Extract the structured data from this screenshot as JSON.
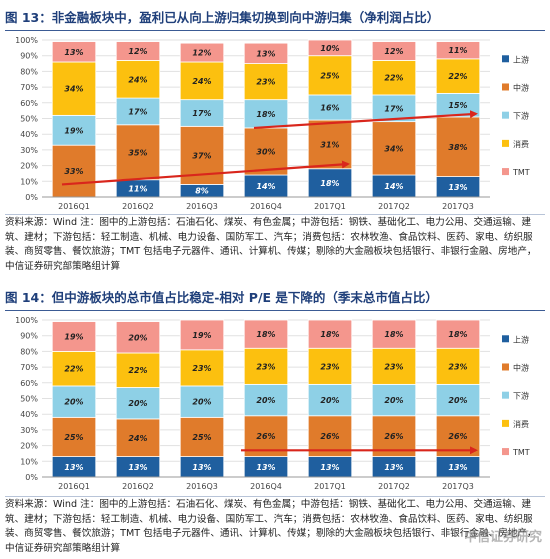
{
  "figures": [
    {
      "title": "图 13：非金融板块中，盈利已从向上游归集切换到向中游归集（净利润占比）",
      "source": "资料来源：Wind    注：图中的上游包括：石油石化、煤炭、有色金属；中游包括：钢铁、基础化工、电力公用、交通运输、建筑、建材；下游包括：轻工制造、机械、电力设备、国防军工、汽车；消费包括：农林牧渔、食品饮料、医药、家电、纺织服装、商贸零售、餐饮旅游；TMT 包括电子元器件、通讯、计算机、传媒；剔除的大金融板块包括银行、非银行金融、房地产，中信证券研究部策略组计算",
      "chart_data": {
        "type": "bar",
        "stacked": true,
        "percent": true,
        "categories": [
          "2016Q1",
          "2016Q2",
          "2016Q3",
          "2016Q4",
          "2017Q1",
          "2017Q2",
          "2017Q3"
        ],
        "series": [
          {
            "name": "上游",
            "color": "#1f5f9f",
            "values": [
              0,
              11,
              8,
              14,
              18,
              14,
              13
            ]
          },
          {
            "name": "中游",
            "color": "#e07b2b",
            "values": [
              33,
              35,
              37,
              30,
              31,
              34,
              38
            ]
          },
          {
            "name": "下游",
            "color": "#8ed0e6",
            "values": [
              19,
              17,
              17,
              18,
              16,
              17,
              15
            ]
          },
          {
            "name": "消费",
            "color": "#fcc00f",
            "values": [
              34,
              24,
              24,
              23,
              25,
              22,
              22
            ]
          },
          {
            "name": "TMT",
            "color": "#f4968d",
            "values": [
              13,
              12,
              12,
              13,
              10,
              12,
              11
            ]
          }
        ],
        "yticks": [
          "0%",
          "10%",
          "20%",
          "30%",
          "40%",
          "50%",
          "60%",
          "70%",
          "80%",
          "90%",
          "100%"
        ],
        "ylim": [
          0,
          100
        ],
        "legend": "right",
        "annotations": "red arrows rising from 2016Q1 to 2017Q3"
      }
    },
    {
      "title": "图 14：但中游板块的总市值占比稳定-相对 P/E 是下降的（季末总市值占比）",
      "source": "资料来源：Wind    注：图中的上游包括：石油石化、煤炭、有色金属；中游包括：钢铁、基础化工、电力公用、交通运输、建筑、建材；下游包括：轻工制造、机械、电力设备、国防军工、汽车；消费包括：农林牧渔、食品饮料、医药、家电、纺织服装、商贸零售、餐饮旅游；TMT 包括电子元器件、通讯、计算机、传媒；剔除的大金融板块包括银行、非银行金融、房地产，中信证券研究部策略组计算",
      "chart_data": {
        "type": "bar",
        "stacked": true,
        "percent": true,
        "categories": [
          "2016Q1",
          "2016Q2",
          "2016Q3",
          "2016Q4",
          "2017Q1",
          "2017Q2",
          "2017Q3"
        ],
        "series": [
          {
            "name": "上游",
            "color": "#1f5f9f",
            "values": [
              13,
              13,
              13,
              13,
              13,
              13,
              13
            ]
          },
          {
            "name": "中游",
            "color": "#e07b2b",
            "values": [
              25,
              24,
              25,
              26,
              26,
              26,
              26
            ]
          },
          {
            "name": "下游",
            "color": "#8ed0e6",
            "values": [
              20,
              20,
              20,
              20,
              20,
              20,
              20
            ]
          },
          {
            "name": "消费",
            "color": "#fcc00f",
            "values": [
              22,
              22,
              23,
              23,
              23,
              23,
              23
            ]
          },
          {
            "name": "TMT",
            "color": "#f4968d",
            "values": [
              19,
              20,
              19,
              18,
              18,
              18,
              18
            ]
          }
        ],
        "yticks": [
          "0%",
          "10%",
          "20%",
          "30%",
          "40%",
          "50%",
          "60%",
          "70%",
          "80%",
          "90%",
          "100%"
        ],
        "ylim": [
          0,
          100
        ],
        "legend": "right",
        "annotations": "flat red arrow from 2016Q4 to 2017Q3"
      }
    }
  ],
  "watermark": "中信证券研究"
}
